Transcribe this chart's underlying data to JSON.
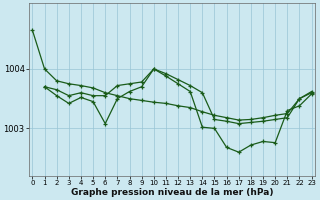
{
  "title": "Graphe pression niveau de la mer (hPa)",
  "background_color": "#cce8f0",
  "line_color": "#1a5c1a",
  "grid_color": "#99c5d5",
  "xlim": [
    -0.3,
    23.3
  ],
  "ylim": [
    1002.2,
    1005.1
  ],
  "yticks": [
    1003,
    1004
  ],
  "xticks": [
    0,
    1,
    2,
    3,
    4,
    5,
    6,
    7,
    8,
    9,
    10,
    11,
    12,
    13,
    14,
    15,
    16,
    17,
    18,
    19,
    20,
    21,
    22,
    23
  ],
  "series_A_x": [
    0,
    1,
    2,
    3,
    4,
    5,
    6,
    7,
    8,
    9,
    10,
    11,
    12,
    13,
    14,
    15,
    16,
    17,
    18,
    19,
    20,
    21,
    22,
    23
  ],
  "series_A_y": [
    1004.65,
    1004.0,
    1003.8,
    1003.75,
    1003.72,
    1003.68,
    1003.6,
    1003.55,
    1003.5,
    1003.47,
    1003.44,
    1003.42,
    1003.38,
    1003.35,
    1003.28,
    1003.22,
    1003.18,
    1003.14,
    1003.15,
    1003.18,
    1003.22,
    1003.25,
    1003.5,
    1003.6
  ],
  "series_B_x": [
    1,
    2,
    3,
    4,
    5,
    6,
    7,
    8,
    9,
    10,
    11,
    12,
    13,
    14,
    15,
    16,
    17,
    18,
    19,
    20,
    21,
    22,
    23
  ],
  "series_B_y": [
    1003.7,
    1003.65,
    1003.55,
    1003.6,
    1003.55,
    1003.55,
    1003.72,
    1003.75,
    1003.78,
    1004.0,
    1003.92,
    1003.82,
    1003.72,
    1003.6,
    1003.15,
    1003.12,
    1003.08,
    1003.1,
    1003.12,
    1003.15,
    1003.18,
    1003.5,
    1003.62
  ],
  "series_C_x": [
    1,
    2,
    3,
    4,
    5,
    6,
    7,
    8,
    9,
    10,
    11,
    12,
    13,
    14,
    15,
    16,
    17,
    18,
    19,
    20,
    21,
    22,
    23
  ],
  "series_C_y": [
    1003.7,
    1003.55,
    1003.42,
    1003.52,
    1003.45,
    1003.08,
    1003.5,
    1003.62,
    1003.7,
    1004.0,
    1003.88,
    1003.75,
    1003.62,
    1003.02,
    1003.0,
    1002.68,
    1002.6,
    1002.72,
    1002.78,
    1002.76,
    1003.3,
    1003.38,
    1003.58
  ]
}
